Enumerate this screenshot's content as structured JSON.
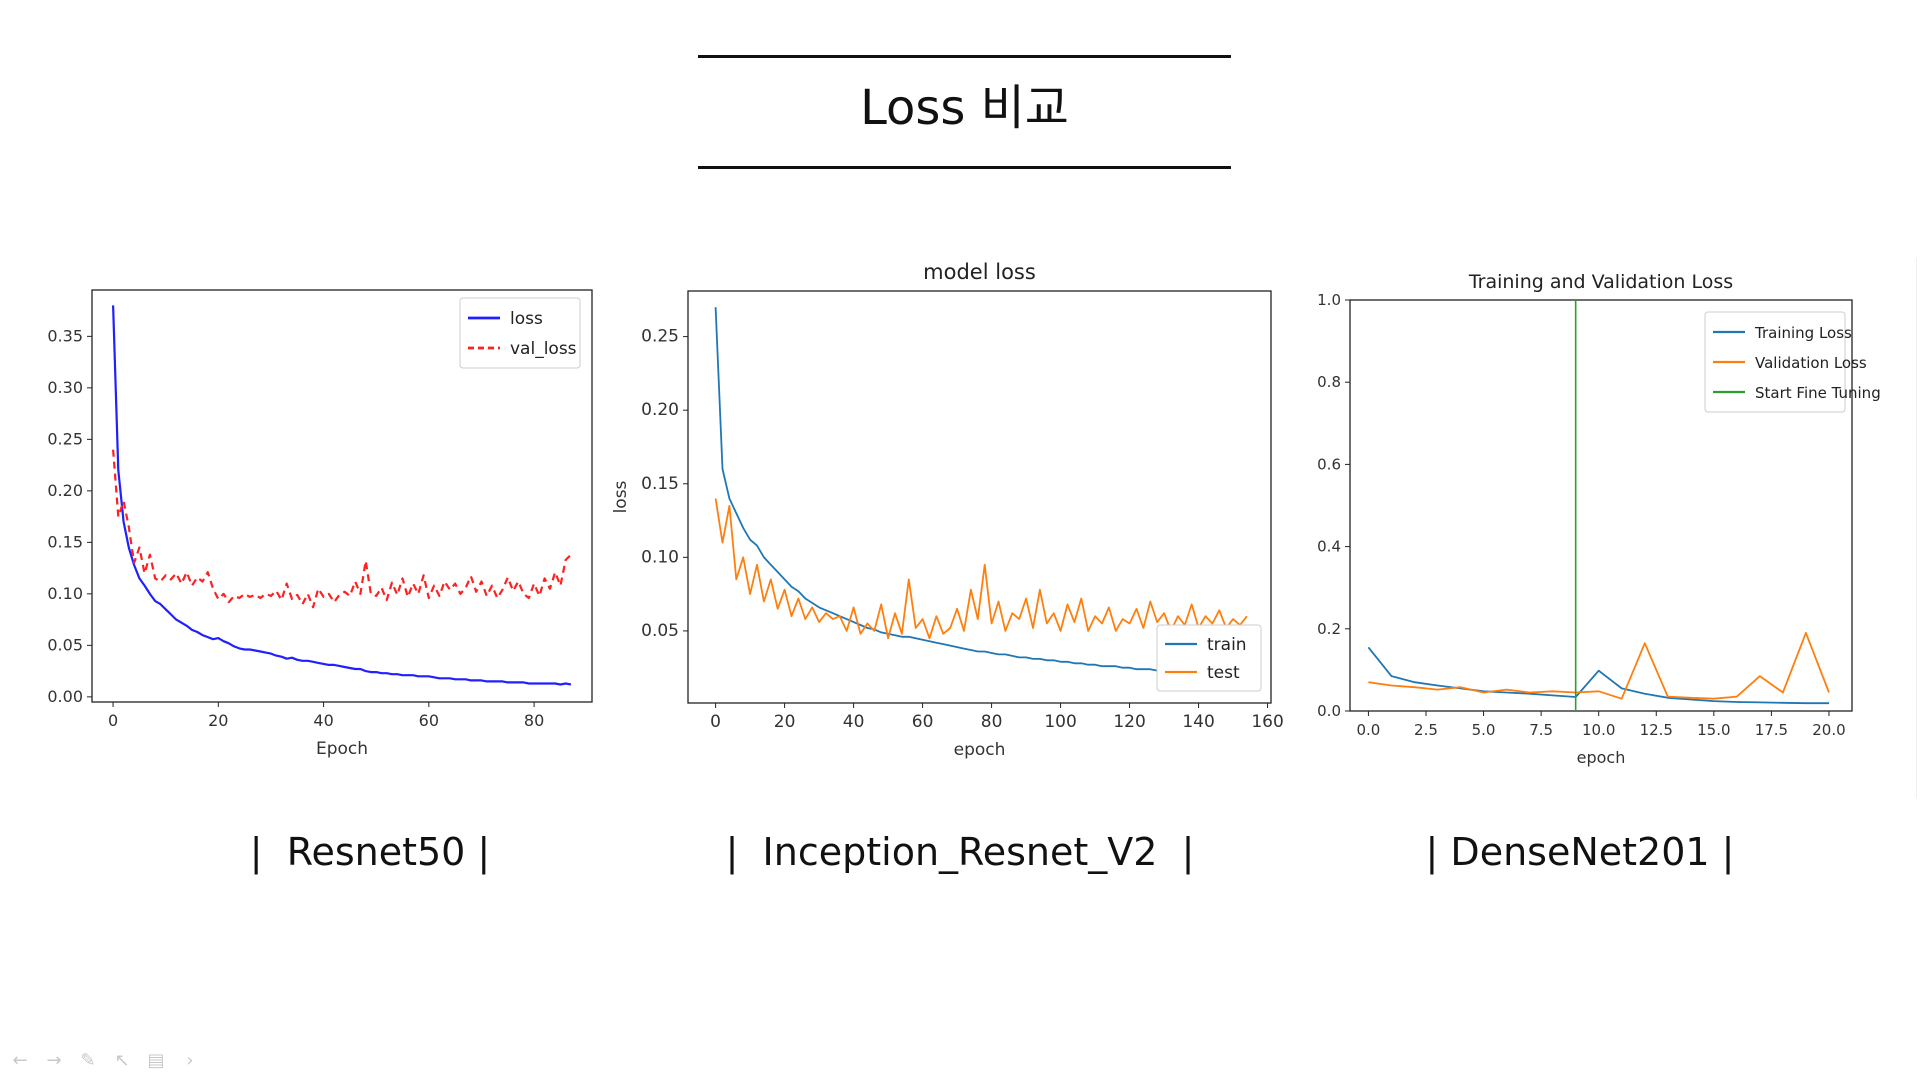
{
  "slide": {
    "title": "Loss 비교",
    "captions": [
      "|  Resnet50 |",
      "|  Inception_Resnet_V2  |",
      "| DenseNet201 |"
    ]
  },
  "nav": {
    "icons": [
      "arrow-left-icon",
      "arrow-right-icon",
      "pen-icon",
      "pointer-icon",
      "slides-icon",
      "chevron-right-icon"
    ]
  },
  "chart_data": [
    {
      "type": "line",
      "title": "",
      "xlabel": "Epoch",
      "ylabel": "",
      "xlim": [
        -4,
        91
      ],
      "ylim": [
        -0.005,
        0.395
      ],
      "xticks": [
        0,
        20,
        40,
        60,
        80
      ],
      "yticks": [
        0.0,
        0.05,
        0.1,
        0.15,
        0.2,
        0.25,
        0.3,
        0.35
      ],
      "grid": false,
      "legend_position": "top-right",
      "series": [
        {
          "name": "loss",
          "color": "#1f1fff",
          "dash": "solid",
          "x": [
            0,
            1,
            2,
            3,
            4,
            5,
            6,
            7,
            8,
            9,
            10,
            11,
            12,
            13,
            14,
            15,
            16,
            17,
            18,
            19,
            20,
            21,
            22,
            23,
            24,
            25,
            26,
            27,
            28,
            29,
            30,
            31,
            32,
            33,
            34,
            35,
            36,
            37,
            38,
            39,
            40,
            41,
            42,
            43,
            44,
            45,
            46,
            47,
            48,
            49,
            50,
            51,
            52,
            53,
            54,
            55,
            56,
            57,
            58,
            59,
            60,
            61,
            62,
            63,
            64,
            65,
            66,
            67,
            68,
            69,
            70,
            71,
            72,
            73,
            74,
            75,
            76,
            77,
            78,
            79,
            80,
            81,
            82,
            83,
            84,
            85,
            86,
            87
          ],
          "values": [
            0.38,
            0.22,
            0.17,
            0.145,
            0.128,
            0.115,
            0.108,
            0.1,
            0.093,
            0.09,
            0.085,
            0.08,
            0.075,
            0.072,
            0.069,
            0.065,
            0.063,
            0.06,
            0.058,
            0.056,
            0.057,
            0.054,
            0.052,
            0.049,
            0.047,
            0.046,
            0.046,
            0.045,
            0.044,
            0.043,
            0.042,
            0.04,
            0.039,
            0.037,
            0.038,
            0.036,
            0.035,
            0.035,
            0.034,
            0.033,
            0.032,
            0.031,
            0.031,
            0.03,
            0.029,
            0.028,
            0.027,
            0.027,
            0.025,
            0.024,
            0.024,
            0.023,
            0.023,
            0.022,
            0.022,
            0.021,
            0.021,
            0.021,
            0.02,
            0.02,
            0.02,
            0.019,
            0.018,
            0.018,
            0.018,
            0.017,
            0.017,
            0.017,
            0.016,
            0.016,
            0.016,
            0.015,
            0.015,
            0.015,
            0.015,
            0.014,
            0.014,
            0.014,
            0.014,
            0.013,
            0.013,
            0.013,
            0.013,
            0.013,
            0.013,
            0.012,
            0.013,
            0.012
          ]
        },
        {
          "name": "val_loss",
          "color": "#ff2020",
          "dash": "dashed",
          "x": [
            0,
            1,
            2,
            3,
            4,
            5,
            6,
            7,
            8,
            9,
            10,
            11,
            12,
            13,
            14,
            15,
            16,
            17,
            18,
            19,
            20,
            21,
            22,
            23,
            24,
            25,
            26,
            27,
            28,
            29,
            30,
            31,
            32,
            33,
            34,
            35,
            36,
            37,
            38,
            39,
            40,
            41,
            42,
            43,
            44,
            45,
            46,
            47,
            48,
            49,
            50,
            51,
            52,
            53,
            54,
            55,
            56,
            57,
            58,
            59,
            60,
            61,
            62,
            63,
            64,
            65,
            66,
            67,
            68,
            69,
            70,
            71,
            72,
            73,
            74,
            75,
            76,
            77,
            78,
            79,
            80,
            81,
            82,
            83,
            84,
            85,
            86,
            87
          ],
          "values": [
            0.24,
            0.175,
            0.19,
            0.165,
            0.13,
            0.145,
            0.12,
            0.138,
            0.115,
            0.112,
            0.118,
            0.114,
            0.12,
            0.11,
            0.121,
            0.108,
            0.116,
            0.112,
            0.121,
            0.105,
            0.095,
            0.1,
            0.092,
            0.098,
            0.096,
            0.1,
            0.097,
            0.099,
            0.096,
            0.1,
            0.098,
            0.103,
            0.094,
            0.11,
            0.095,
            0.099,
            0.09,
            0.1,
            0.087,
            0.105,
            0.097,
            0.1,
            0.092,
            0.099,
            0.102,
            0.098,
            0.112,
            0.1,
            0.132,
            0.1,
            0.098,
            0.106,
            0.094,
            0.111,
            0.099,
            0.115,
            0.097,
            0.11,
            0.1,
            0.118,
            0.096,
            0.108,
            0.098,
            0.112,
            0.104,
            0.11,
            0.1,
            0.106,
            0.117,
            0.102,
            0.112,
            0.098,
            0.108,
            0.096,
            0.104,
            0.116,
            0.103,
            0.112,
            0.1,
            0.096,
            0.11,
            0.098,
            0.115,
            0.105,
            0.121,
            0.108,
            0.133,
            0.138
          ]
        }
      ]
    },
    {
      "type": "line",
      "title": "model loss",
      "xlabel": "epoch",
      "ylabel": "loss",
      "xlim": [
        -8,
        161
      ],
      "ylim": [
        0.001,
        0.281
      ],
      "xticks": [
        0,
        20,
        40,
        60,
        80,
        100,
        120,
        140,
        160
      ],
      "yticks": [
        0.05,
        0.1,
        0.15,
        0.2,
        0.25
      ],
      "grid": false,
      "legend_position": "bottom-right",
      "series": [
        {
          "name": "train",
          "color": "#1f77b4",
          "x": [
            0,
            2,
            4,
            6,
            8,
            10,
            12,
            14,
            16,
            18,
            20,
            22,
            24,
            26,
            28,
            30,
            32,
            34,
            36,
            38,
            40,
            42,
            44,
            46,
            48,
            50,
            52,
            54,
            56,
            58,
            60,
            62,
            64,
            66,
            68,
            70,
            72,
            74,
            76,
            78,
            80,
            82,
            84,
            86,
            88,
            90,
            92,
            94,
            96,
            98,
            100,
            102,
            104,
            106,
            108,
            110,
            112,
            114,
            116,
            118,
            120,
            122,
            124,
            126,
            128,
            130,
            132,
            134,
            136,
            138,
            140,
            142,
            144,
            146,
            148,
            150,
            152,
            154
          ],
          "values": [
            0.27,
            0.16,
            0.14,
            0.13,
            0.12,
            0.112,
            0.108,
            0.1,
            0.095,
            0.09,
            0.085,
            0.08,
            0.077,
            0.072,
            0.069,
            0.066,
            0.064,
            0.062,
            0.06,
            0.058,
            0.056,
            0.054,
            0.052,
            0.051,
            0.049,
            0.048,
            0.047,
            0.046,
            0.046,
            0.045,
            0.044,
            0.043,
            0.042,
            0.041,
            0.04,
            0.039,
            0.038,
            0.037,
            0.036,
            0.036,
            0.035,
            0.034,
            0.034,
            0.033,
            0.032,
            0.032,
            0.031,
            0.031,
            0.03,
            0.03,
            0.029,
            0.029,
            0.028,
            0.028,
            0.027,
            0.027,
            0.026,
            0.026,
            0.026,
            0.025,
            0.025,
            0.024,
            0.024,
            0.024,
            0.023,
            0.023,
            0.023,
            0.022,
            0.022,
            0.022,
            0.021,
            0.021,
            0.021,
            0.021,
            0.02,
            0.02,
            0.02,
            0.02
          ]
        },
        {
          "name": "test",
          "color": "#ff7f0e",
          "x": [
            0,
            2,
            4,
            6,
            8,
            10,
            12,
            14,
            16,
            18,
            20,
            22,
            24,
            26,
            28,
            30,
            32,
            34,
            36,
            38,
            40,
            42,
            44,
            46,
            48,
            50,
            52,
            54,
            56,
            58,
            60,
            62,
            64,
            66,
            68,
            70,
            72,
            74,
            76,
            78,
            80,
            82,
            84,
            86,
            88,
            90,
            92,
            94,
            96,
            98,
            100,
            102,
            104,
            106,
            108,
            110,
            112,
            114,
            116,
            118,
            120,
            122,
            124,
            126,
            128,
            130,
            132,
            134,
            136,
            138,
            140,
            142,
            144,
            146,
            148,
            150,
            152,
            154
          ],
          "values": [
            0.14,
            0.11,
            0.135,
            0.085,
            0.1,
            0.075,
            0.095,
            0.07,
            0.085,
            0.065,
            0.078,
            0.06,
            0.072,
            0.058,
            0.066,
            0.056,
            0.062,
            0.058,
            0.06,
            0.05,
            0.066,
            0.048,
            0.055,
            0.05,
            0.068,
            0.045,
            0.062,
            0.048,
            0.085,
            0.052,
            0.058,
            0.045,
            0.06,
            0.048,
            0.052,
            0.065,
            0.05,
            0.078,
            0.058,
            0.095,
            0.055,
            0.07,
            0.05,
            0.062,
            0.058,
            0.072,
            0.052,
            0.078,
            0.055,
            0.062,
            0.05,
            0.068,
            0.056,
            0.072,
            0.05,
            0.06,
            0.055,
            0.066,
            0.05,
            0.058,
            0.055,
            0.065,
            0.052,
            0.07,
            0.056,
            0.062,
            0.05,
            0.06,
            0.054,
            0.068,
            0.052,
            0.06,
            0.055,
            0.064,
            0.052,
            0.058,
            0.054,
            0.06
          ]
        }
      ]
    },
    {
      "type": "line",
      "title": "Training and Validation Loss",
      "xlabel": "epoch",
      "ylabel": "",
      "xlim": [
        -0.8,
        21.0
      ],
      "ylim": [
        0,
        1.0
      ],
      "xticks": [
        0.0,
        2.5,
        5.0,
        7.5,
        10.0,
        12.5,
        15.0,
        17.5,
        20.0
      ],
      "yticks": [
        0.0,
        0.2,
        0.4,
        0.6,
        0.8,
        1.0
      ],
      "grid": false,
      "legend_position": "top-right",
      "series": [
        {
          "name": "Training Loss",
          "color": "#1f77b4",
          "x": [
            0,
            1,
            2,
            3,
            4,
            5,
            6,
            7,
            8,
            9,
            10,
            11,
            12,
            13,
            14,
            15,
            16,
            17,
            18,
            19,
            20
          ],
          "values": [
            0.155,
            0.085,
            0.07,
            0.062,
            0.055,
            0.048,
            0.045,
            0.042,
            0.038,
            0.034,
            0.098,
            0.055,
            0.042,
            0.032,
            0.028,
            0.024,
            0.022,
            0.021,
            0.02,
            0.019,
            0.019
          ]
        },
        {
          "name": "Validation Loss",
          "color": "#ff7f0e",
          "x": [
            0,
            1,
            2,
            3,
            4,
            5,
            6,
            7,
            8,
            9,
            10,
            11,
            12,
            13,
            14,
            15,
            16,
            17,
            18,
            19,
            20
          ],
          "values": [
            0.07,
            0.062,
            0.058,
            0.052,
            0.058,
            0.045,
            0.052,
            0.045,
            0.048,
            0.045,
            0.048,
            0.03,
            0.165,
            0.035,
            0.032,
            0.03,
            0.035,
            0.085,
            0.045,
            0.19,
            0.045
          ]
        },
        {
          "name": "Start Fine Tuning",
          "color": "#2ca02c",
          "vline_x": 9
        }
      ]
    }
  ]
}
